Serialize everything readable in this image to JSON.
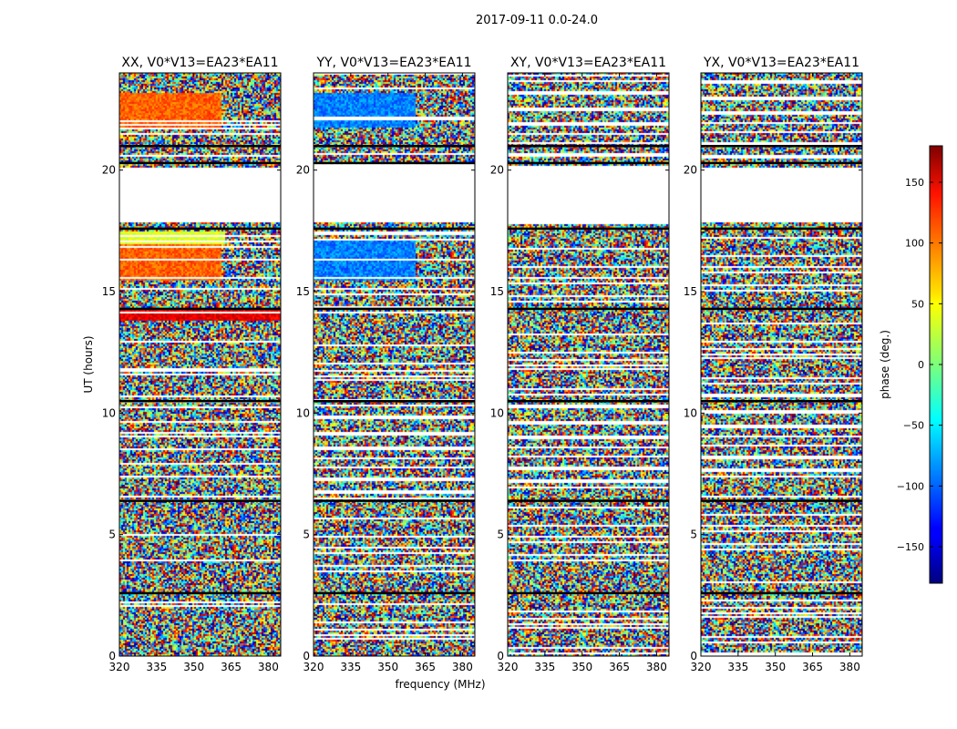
{
  "chart_data": {
    "type": "heatmap",
    "title": "2017-09-11 0.0-24.0",
    "xlabel": "frequency (MHz)",
    "ylabel": "UT (hours)",
    "xlim": [
      320,
      385
    ],
    "ylim": [
      0,
      24
    ],
    "xticks": [
      320,
      335,
      350,
      365,
      380
    ],
    "yticks": [
      0,
      5,
      10,
      15,
      20
    ],
    "panels": [
      {
        "title": "XX, V0*V13=EA23*EA11",
        "pol": "XX"
      },
      {
        "title": "YY, V0*V13=EA23*EA11",
        "pol": "YY"
      },
      {
        "title": "XY, V0*V13=EA23*EA11",
        "pol": "XY"
      },
      {
        "title": "YX, V0*V13=EA23*EA11",
        "pol": "YX"
      }
    ],
    "colorbar": {
      "label": "phase (deg.)",
      "range": [
        -180,
        180
      ],
      "ticks": [
        -150,
        -100,
        -50,
        0,
        50,
        100,
        150
      ],
      "tick_labels": [
        "−150",
        "−100",
        "−50",
        "0",
        "50",
        "100",
        "150"
      ],
      "colormap": "jet"
    },
    "flagged_ut_ranges": [
      [
        17.9,
        20.1
      ]
    ],
    "gap_ut_lines": [
      2.6,
      6.4,
      10.5,
      14.3,
      17.6,
      20.3,
      21.0
    ]
  }
}
